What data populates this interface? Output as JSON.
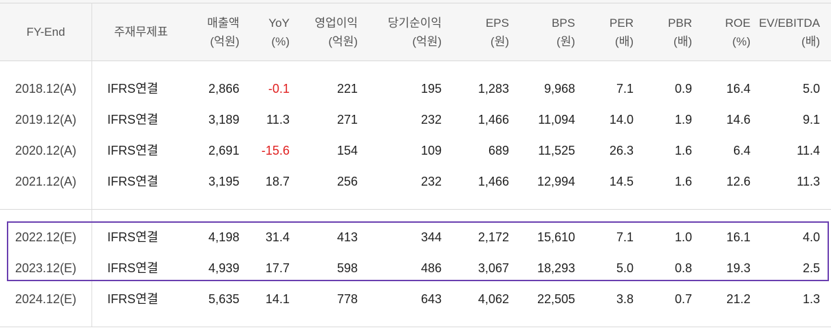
{
  "header": {
    "fy_end": "FY-End",
    "report_type": "주재무제표",
    "columns": [
      {
        "label": "매출액",
        "unit": "(억원)"
      },
      {
        "label": "YoY",
        "unit": "(%)"
      },
      {
        "label": "영업이익",
        "unit": "(억원)"
      },
      {
        "label": "당기순이익",
        "unit": "(억원)"
      },
      {
        "label": "EPS",
        "unit": "(원)"
      },
      {
        "label": "BPS",
        "unit": "(원)"
      },
      {
        "label": "PER",
        "unit": "(배)"
      },
      {
        "label": "PBR",
        "unit": "(배)"
      },
      {
        "label": "ROE",
        "unit": "(%)"
      },
      {
        "label": "EV/EBITDA",
        "unit": "(배)"
      }
    ]
  },
  "rows": [
    {
      "fy": "2018.12(A)",
      "type": "IFRS연결",
      "values": [
        "2,866",
        "-0.1",
        "221",
        "195",
        "1,283",
        "9,968",
        "7.1",
        "0.9",
        "16.4",
        "5.0"
      ]
    },
    {
      "fy": "2019.12(A)",
      "type": "IFRS연결",
      "values": [
        "3,189",
        "11.3",
        "271",
        "232",
        "1,466",
        "11,094",
        "14.0",
        "1.9",
        "14.6",
        "9.1"
      ]
    },
    {
      "fy": "2020.12(A)",
      "type": "IFRS연결",
      "values": [
        "2,691",
        "-15.6",
        "154",
        "109",
        "689",
        "11,525",
        "26.3",
        "1.6",
        "6.4",
        "11.4"
      ]
    },
    {
      "fy": "2021.12(A)",
      "type": "IFRS연결",
      "values": [
        "3,195",
        "18.7",
        "256",
        "232",
        "1,466",
        "12,994",
        "14.5",
        "1.6",
        "12.6",
        "11.3"
      ]
    },
    {
      "fy": "2022.12(E)",
      "type": "IFRS연결",
      "values": [
        "4,198",
        "31.4",
        "413",
        "344",
        "2,172",
        "15,610",
        "7.1",
        "1.0",
        "16.1",
        "4.0"
      ]
    },
    {
      "fy": "2023.12(E)",
      "type": "IFRS연결",
      "values": [
        "4,939",
        "17.7",
        "598",
        "486",
        "3,067",
        "18,293",
        "5.0",
        "0.8",
        "19.3",
        "2.5"
      ]
    },
    {
      "fy": "2024.12(E)",
      "type": "IFRS연결",
      "values": [
        "5,635",
        "14.1",
        "778",
        "643",
        "4,062",
        "22,505",
        "3.8",
        "0.7",
        "21.2",
        "1.3"
      ]
    }
  ],
  "colors": {
    "negative": "#e02020",
    "highlight_border": "#6a3fb0"
  }
}
